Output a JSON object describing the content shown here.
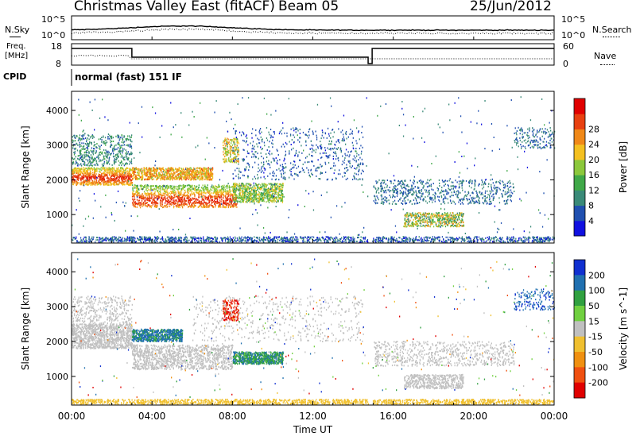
{
  "header": {
    "radar": "Christmas Valley East (fitACF)",
    "beam": "Beam 05",
    "date": "25/Jun/2012"
  },
  "panels": {
    "nsky": {
      "label": "N.Sky",
      "ticks": [
        "10^5",
        "10^0"
      ],
      "right_label": "N.Search",
      "right_ticks": [
        "10^5",
        "10^0"
      ]
    },
    "freq": {
      "label_line1": "Freq.",
      "label_line2": "[MHz]",
      "ticks": [
        "18",
        "8"
      ],
      "right_label": "Nave",
      "right_ticks": [
        "60",
        "0"
      ]
    },
    "cpid": {
      "label": "CPID",
      "value": "normal (fast) 151 IF"
    }
  },
  "chart_data": [
    {
      "type": "heatmap",
      "name": "power",
      "xlabel": "Time UT",
      "ylabel": "Slant Range [km]",
      "x_ticks": [
        "00:00",
        "04:00",
        "08:00",
        "12:00",
        "16:00",
        "20:00",
        "00:00"
      ],
      "xlim_hours": [
        0,
        24
      ],
      "y_ticks": [
        1000,
        2000,
        3000,
        4000
      ],
      "ylim": [
        180,
        4550
      ],
      "colorbar": {
        "label": "Power [dB]",
        "ticks": [
          4,
          8,
          12,
          16,
          20,
          24,
          28
        ],
        "range": [
          0,
          32
        ],
        "colors": [
          "#1010e0",
          "#2050b0",
          "#3a8a78",
          "#40a848",
          "#8cc83c",
          "#f4c020",
          "#f08818",
          "#e84010",
          "#e00000"
        ]
      }
    },
    {
      "type": "heatmap",
      "name": "velocity",
      "xlabel": "Time UT",
      "ylabel": "Slant Range [km]",
      "x_ticks": [
        "00:00",
        "04:00",
        "08:00",
        "12:00",
        "16:00",
        "20:00",
        "00:00"
      ],
      "xlim_hours": [
        0,
        24
      ],
      "y_ticks": [
        1000,
        2000,
        3000,
        4000
      ],
      "ylim": [
        180,
        4550
      ],
      "colorbar": {
        "label": "Velocity [m s^-1]",
        "ticks": [
          200,
          100,
          50,
          15,
          -15,
          -50,
          -100,
          -200
        ],
        "colors": [
          "#1030d0",
          "#2070b0",
          "#30a040",
          "#70d040",
          "#c0c0c0",
          "#f0c030",
          "#f09010",
          "#f05010",
          "#e00000"
        ]
      }
    }
  ]
}
